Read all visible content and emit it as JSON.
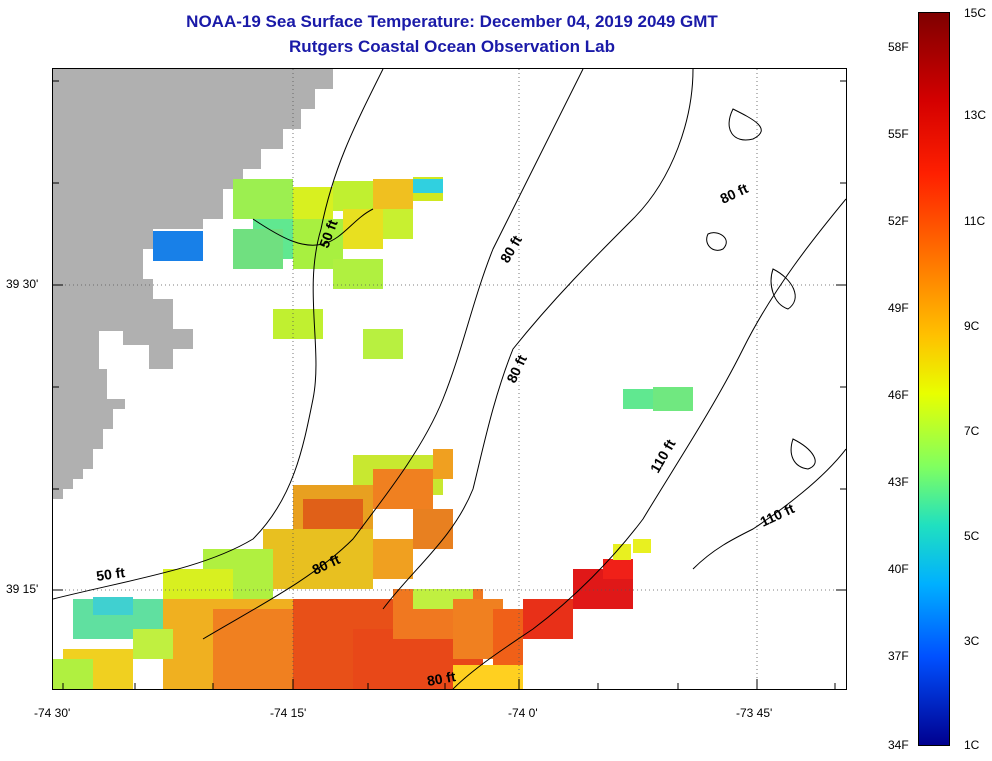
{
  "header": {
    "title": "NOAA-19 Sea Surface Temperature:  December 04, 2019 2049 GMT",
    "subtitle": "Rutgers Coastal Ocean Observation Lab"
  },
  "map": {
    "longitude_labels": [
      "-74 30'",
      "-74 15'",
      "-74 0'",
      "-73 45'"
    ],
    "latitude_labels": [
      "39 30'",
      "39 15'"
    ],
    "contour_labels": {
      "c1": "50 ft",
      "c2": "80 ft",
      "c3": "80 ft",
      "c4": "80 ft",
      "c5": "110 ft",
      "c6": "110 ft",
      "c7": "50 ft",
      "c8": "80 ft",
      "c9": "80 ft"
    },
    "colors": {
      "land": "#b0b0b0",
      "grid": "#555555"
    }
  },
  "colorbar": {
    "fahrenheit": [
      "58F",
      "55F",
      "52F",
      "49F",
      "46F",
      "43F",
      "40F",
      "37F",
      "34F"
    ],
    "celsius": [
      "15C",
      "13C",
      "11C",
      "9C",
      "7C",
      "5C",
      "3C",
      "1C"
    ]
  }
}
